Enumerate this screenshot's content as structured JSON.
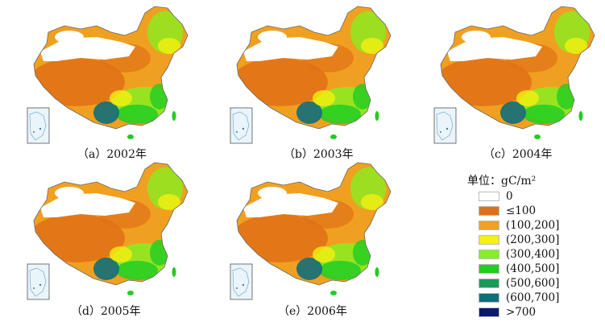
{
  "panels": [
    {
      "caption": "（a）2002年"
    },
    {
      "caption": "（b）2003年"
    },
    {
      "caption": "（c）2004年"
    },
    {
      "caption": "（d）2005年"
    },
    {
      "caption": "（e）2006年"
    }
  ],
  "legend": {
    "title": "单位：gC/m²",
    "items": [
      {
        "label": "0",
        "color": "#ffffff"
      },
      {
        "label": "≤100",
        "color": "#e07018"
      },
      {
        "label": "(100,200]",
        "color": "#f0a020"
      },
      {
        "label": "(200,300]",
        "color": "#f5f010"
      },
      {
        "label": "(300,400]",
        "color": "#88ee22"
      },
      {
        "label": "(400,500]",
        "color": "#22cc22"
      },
      {
        "label": "(500,600]",
        "color": "#1a9a5a"
      },
      {
        "label": "(600,700]",
        "color": "#106e7a"
      },
      {
        "label": ">700",
        "color": "#0a1a6e"
      }
    ]
  },
  "colors": {
    "low": "#e07018",
    "mid": "#f0a020",
    "yellow": "#f5f010",
    "light_green": "#88ee22",
    "green": "#22cc22",
    "teal": "#106e7a",
    "white": "#ffffff"
  }
}
